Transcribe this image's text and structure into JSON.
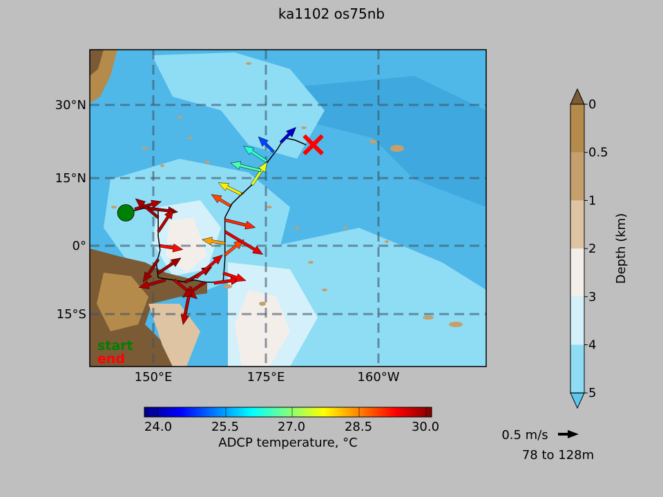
{
  "title": "ka1102 os75nb",
  "map": {
    "lat_ticks": [
      "30°N",
      "15°N",
      "0°",
      "15°S"
    ],
    "lon_ticks": [
      "150°E",
      "175°E",
      "160°W"
    ],
    "start_label": "start",
    "end_label": "end",
    "start_color": "#008000",
    "end_color": "#ff0000"
  },
  "depth_colorbar": {
    "label": "Depth (km)",
    "ticks": [
      "0",
      "0.5",
      "1",
      "2",
      "3",
      "4",
      "5"
    ],
    "colors": [
      "#b58b4c",
      "#c59f6c",
      "#dfc4a3",
      "#f4eeea",
      "#d4f0fb",
      "#8fdcf5"
    ],
    "over_color": "#7b5a36",
    "under_color": "#5cc8f0"
  },
  "temp_colorbar": {
    "label": "ADCP temperature, °C",
    "ticks": [
      "24.0",
      "25.5",
      "27.0",
      "28.5",
      "30.0"
    ],
    "range": [
      23.5,
      30.2
    ]
  },
  "vector_key": {
    "speed_label": "0.5 m/s",
    "depth_range": "78 to 128m"
  },
  "chart_data": {
    "type": "scatter",
    "title": "ka1102 os75nb",
    "description_axes": {
      "x": "longitude (deg E)",
      "y": "latitude (deg)"
    },
    "xlim": [
      135,
      245
    ],
    "ylim": [
      -27,
      43
    ],
    "track": [
      {
        "lon": 145.0,
        "lat": 7.0
      },
      {
        "lon": 150.0,
        "lat": 8.0
      },
      {
        "lon": 154.0,
        "lat": 7.5
      },
      {
        "lon": 154.0,
        "lat": 2.0
      },
      {
        "lon": 154.5,
        "lat": -1.0
      },
      {
        "lon": 153.5,
        "lat": -4.0
      },
      {
        "lon": 154.0,
        "lat": -7.0
      },
      {
        "lon": 158.0,
        "lat": -7.5
      },
      {
        "lon": 161.5,
        "lat": -8.0
      },
      {
        "lon": 164.0,
        "lat": -7.5
      },
      {
        "lon": 167.0,
        "lat": -8.0
      },
      {
        "lon": 172.0,
        "lat": -8.0
      },
      {
        "lon": 172.5,
        "lat": -3.0
      },
      {
        "lon": 172.5,
        "lat": 2.0
      },
      {
        "lon": 172.5,
        "lat": 6.0
      },
      {
        "lon": 174.5,
        "lat": 9.0
      },
      {
        "lon": 176.5,
        "lat": 10.5
      },
      {
        "lon": 180.0,
        "lat": 13.0
      },
      {
        "lon": 182.0,
        "lat": 15.5
      },
      {
        "lon": 184.5,
        "lat": 18.0
      },
      {
        "lon": 187.0,
        "lat": 20.5
      },
      {
        "lon": 189.0,
        "lat": 23.0
      },
      {
        "lon": 192.0,
        "lat": 22.5
      },
      {
        "lon": 195.0,
        "lat": 21.5
      }
    ],
    "start": {
      "lon": 145.0,
      "lat": 7.0
    },
    "end": {
      "lon": 197.0,
      "lat": 21.5
    },
    "vectors": [
      {
        "lon": 147.5,
        "lat": 7.8,
        "u": 0.35,
        "v": 0.1,
        "temp": 29.9
      },
      {
        "lon": 151.0,
        "lat": 8.0,
        "u": 0.4,
        "v": -0.05,
        "temp": 30.0
      },
      {
        "lon": 154.0,
        "lat": 6.0,
        "u": -0.3,
        "v": 0.25,
        "temp": 30.0
      },
      {
        "lon": 154.0,
        "lat": 3.0,
        "u": 0.2,
        "v": 0.3,
        "temp": 29.8
      },
      {
        "lon": 154.5,
        "lat": 0.0,
        "u": 0.3,
        "v": -0.05,
        "temp": 29.3
      },
      {
        "lon": 154.0,
        "lat": -3.0,
        "u": -0.2,
        "v": -0.3,
        "temp": 30.0
      },
      {
        "lon": 154.0,
        "lat": -6.0,
        "u": 0.3,
        "v": 0.2,
        "temp": 30.0
      },
      {
        "lon": 156.0,
        "lat": -7.5,
        "u": -0.35,
        "v": -0.1,
        "temp": 29.9
      },
      {
        "lon": 158.5,
        "lat": -7.5,
        "u": 0.3,
        "v": -0.25,
        "temp": 29.8
      },
      {
        "lon": 161.5,
        "lat": -8.0,
        "u": 0.35,
        "v": 0.2,
        "temp": 30.0
      },
      {
        "lon": 163.0,
        "lat": -9.0,
        "u": -0.1,
        "v": -0.5,
        "temp": 29.8
      },
      {
        "lon": 164.5,
        "lat": -7.0,
        "u": 0.35,
        "v": 0.3,
        "temp": 29.6
      },
      {
        "lon": 167.0,
        "lat": -8.0,
        "u": -0.3,
        "v": -0.2,
        "temp": 29.9
      },
      {
        "lon": 169.5,
        "lat": -8.2,
        "u": 0.35,
        "v": 0.05,
        "temp": 29.5
      },
      {
        "lon": 172.0,
        "lat": -6.0,
        "u": 0.3,
        "v": -0.1,
        "temp": 29.4
      },
      {
        "lon": 172.5,
        "lat": -2.0,
        "u": 0.25,
        "v": 0.2,
        "temp": 28.9
      },
      {
        "lon": 172.5,
        "lat": 0.5,
        "u": -0.3,
        "v": 0.05,
        "temp": 28.3
      },
      {
        "lon": 172.5,
        "lat": 3.0,
        "u": 0.5,
        "v": -0.3,
        "temp": 29.5
      },
      {
        "lon": 172.5,
        "lat": 5.5,
        "u": 0.4,
        "v": -0.1,
        "temp": 29.1
      },
      {
        "lon": 174.0,
        "lat": 8.5,
        "u": -0.25,
        "v": 0.15,
        "temp": 28.9
      },
      {
        "lon": 177.0,
        "lat": 11.0,
        "u": -0.3,
        "v": 0.15,
        "temp": 27.8
      },
      {
        "lon": 180.0,
        "lat": 13.0,
        "u": 0.2,
        "v": 0.3,
        "temp": 27.5
      },
      {
        "lon": 182.5,
        "lat": 16.0,
        "u": -0.4,
        "v": 0.1,
        "temp": 26.5
      },
      {
        "lon": 184.0,
        "lat": 18.0,
        "u": -0.3,
        "v": 0.2,
        "temp": 26.3
      },
      {
        "lon": 186.0,
        "lat": 20.0,
        "u": -0.2,
        "v": 0.2,
        "temp": 24.8
      },
      {
        "lon": 188.0,
        "lat": 22.0,
        "u": 0.2,
        "v": 0.2,
        "temp": 24.0
      }
    ]
  }
}
